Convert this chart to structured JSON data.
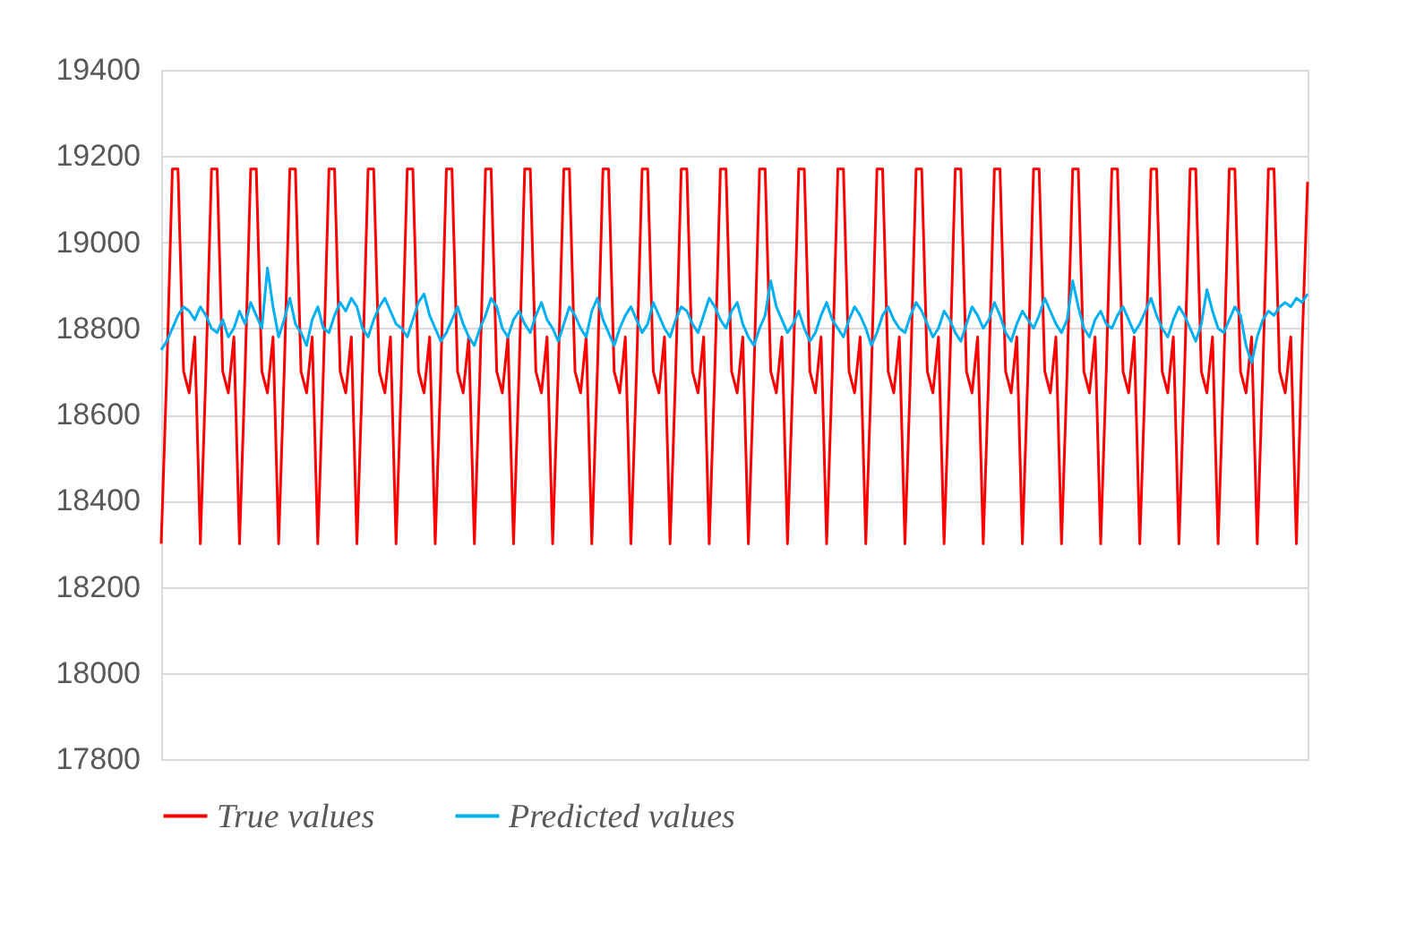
{
  "chart_data": {
    "type": "line",
    "categories": [
      null,
      null,
      null,
      null,
      null,
      null,
      null,
      null,
      null,
      null,
      null,
      null,
      null,
      null,
      null,
      null,
      null,
      null,
      null,
      null,
      null,
      null,
      null,
      null,
      null,
      null,
      null,
      null,
      null,
      null,
      null,
      null,
      null,
      null,
      null,
      null,
      null,
      null,
      null,
      null,
      null,
      null,
      null,
      null,
      null,
      null,
      null,
      null,
      null,
      null,
      null,
      null,
      null,
      null,
      null,
      null,
      null,
      null,
      null,
      null,
      null,
      null,
      null,
      null,
      null,
      null,
      null,
      null,
      null,
      null,
      null,
      null,
      null,
      null,
      null,
      null,
      null,
      null,
      null,
      null,
      null,
      null,
      null,
      null,
      null,
      null,
      null,
      null,
      null,
      null,
      null,
      null,
      null,
      null,
      null,
      null,
      null,
      null,
      null,
      null,
      null,
      null,
      null,
      null,
      null,
      null,
      null,
      null,
      null,
      null,
      null,
      null,
      null,
      null,
      null,
      null,
      null,
      null,
      null,
      null,
      null,
      null,
      null,
      null,
      null,
      null,
      null,
      null,
      null,
      null,
      null,
      null,
      null,
      null,
      null,
      null,
      null,
      null,
      null,
      null,
      null,
      null,
      null,
      null,
      null,
      null,
      null,
      null,
      null,
      null,
      null,
      null,
      null,
      null,
      null,
      null,
      null,
      null,
      null,
      null,
      null,
      null,
      null,
      null,
      null,
      null,
      null,
      null,
      null,
      null,
      null,
      null,
      null,
      null,
      null,
      null,
      null,
      null,
      null,
      null,
      null,
      null,
      null,
      null,
      null,
      null,
      null,
      null,
      null,
      null,
      null,
      null,
      null,
      null,
      null,
      null,
      null,
      null,
      null,
      null,
      null,
      null,
      null,
      null,
      null,
      null
    ],
    "series": [
      {
        "name": "True values",
        "color": "#ff0000",
        "values": [
          18300,
          18700,
          19170,
          19170,
          18700,
          18650,
          18780,
          18300,
          18700,
          19170,
          19170,
          18700,
          18650,
          18780,
          18300,
          18700,
          19170,
          19170,
          18700,
          18650,
          18780,
          18300,
          18700,
          19170,
          19170,
          18700,
          18650,
          18780,
          18300,
          18700,
          19170,
          19170,
          18700,
          18650,
          18780,
          18300,
          18700,
          19170,
          19170,
          18700,
          18650,
          18780,
          18300,
          18700,
          19170,
          19170,
          18700,
          18650,
          18780,
          18300,
          18700,
          19170,
          19170,
          18700,
          18650,
          18780,
          18300,
          18700,
          19170,
          19170,
          18700,
          18650,
          18780,
          18300,
          18700,
          19170,
          19170,
          18700,
          18650,
          18780,
          18300,
          18700,
          19170,
          19170,
          18700,
          18650,
          18780,
          18300,
          18700,
          19170,
          19170,
          18700,
          18650,
          18780,
          18300,
          18700,
          19170,
          19170,
          18700,
          18650,
          18780,
          18300,
          18700,
          19170,
          19170,
          18700,
          18650,
          18780,
          18300,
          18700,
          19170,
          19170,
          18700,
          18650,
          18780,
          18300,
          18700,
          19170,
          19170,
          18700,
          18650,
          18780,
          18300,
          18700,
          19170,
          19170,
          18700,
          18650,
          18780,
          18300,
          18700,
          19170,
          19170,
          18700,
          18650,
          18780,
          18300,
          18700,
          19170,
          19170,
          18700,
          18650,
          18780,
          18300,
          18700,
          19170,
          19170,
          18700,
          18650,
          18780,
          18300,
          18700,
          19170,
          19170,
          18700,
          18650,
          18780,
          18300,
          18700,
          19170,
          19170,
          18700,
          18650,
          18780,
          18300,
          18700,
          19170,
          19170,
          18700,
          18650,
          18780,
          18300,
          18700,
          19170,
          19170,
          18700,
          18650,
          18780,
          18300,
          18700,
          19170,
          19170,
          18700,
          18650,
          18780,
          18300,
          18700,
          19170,
          19170,
          18700,
          18650,
          18780,
          18300,
          18700,
          19170,
          19170,
          18700,
          18650,
          18780,
          18300,
          18700,
          19170,
          19170,
          18700,
          18650,
          18780,
          18300,
          18700,
          19170,
          19170,
          18700,
          18650,
          18780,
          18300,
          18750,
          19140
        ]
      },
      {
        "name": "Predicted values",
        "color": "#00b0f0",
        "values": [
          18750,
          18770,
          18800,
          18830,
          18850,
          18840,
          18820,
          18850,
          18830,
          18800,
          18790,
          18820,
          18780,
          18800,
          18840,
          18810,
          18860,
          18830,
          18800,
          18940,
          18850,
          18780,
          18820,
          18870,
          18810,
          18790,
          18760,
          18820,
          18850,
          18800,
          18790,
          18830,
          18860,
          18840,
          18870,
          18850,
          18800,
          18780,
          18820,
          18850,
          18870,
          18840,
          18810,
          18800,
          18780,
          18820,
          18860,
          18880,
          18830,
          18800,
          18770,
          18790,
          18820,
          18850,
          18810,
          18780,
          18760,
          18800,
          18830,
          18870,
          18850,
          18800,
          18780,
          18820,
          18840,
          18810,
          18790,
          18830,
          18860,
          18820,
          18800,
          18770,
          18810,
          18850,
          18830,
          18800,
          18780,
          18840,
          18870,
          18820,
          18790,
          18760,
          18800,
          18830,
          18850,
          18820,
          18790,
          18810,
          18860,
          18830,
          18800,
          18780,
          18820,
          18850,
          18840,
          18810,
          18790,
          18830,
          18870,
          18850,
          18820,
          18800,
          18840,
          18860,
          18810,
          18780,
          18760,
          18800,
          18830,
          18910,
          18850,
          18820,
          18790,
          18810,
          18840,
          18800,
          18770,
          18790,
          18830,
          18860,
          18820,
          18800,
          18780,
          18820,
          18850,
          18830,
          18800,
          18760,
          18790,
          18830,
          18850,
          18820,
          18800,
          18790,
          18830,
          18860,
          18840,
          18810,
          18780,
          18800,
          18840,
          18820,
          18790,
          18770,
          18810,
          18850,
          18830,
          18800,
          18820,
          18860,
          18830,
          18790,
          18770,
          18810,
          18840,
          18820,
          18800,
          18830,
          18870,
          18840,
          18810,
          18790,
          18820,
          18910,
          18850,
          18800,
          18780,
          18820,
          18840,
          18810,
          18800,
          18830,
          18850,
          18820,
          18790,
          18810,
          18840,
          18870,
          18830,
          18800,
          18780,
          18820,
          18850,
          18830,
          18800,
          18770,
          18810,
          18890,
          18840,
          18800,
          18790,
          18820,
          18850,
          18830,
          18760,
          18720,
          18780,
          18820,
          18840,
          18830,
          18850,
          18860,
          18850,
          18870,
          18860,
          18880
        ]
      }
    ],
    "ylim": [
      17800,
      19400
    ],
    "yticks": [
      17800,
      18000,
      18200,
      18400,
      18600,
      18800,
      19000,
      19200,
      19400
    ],
    "grid": "y",
    "legend": "bottom",
    "tick_labels": "y",
    "line_style": "solid",
    "marker": "none"
  }
}
